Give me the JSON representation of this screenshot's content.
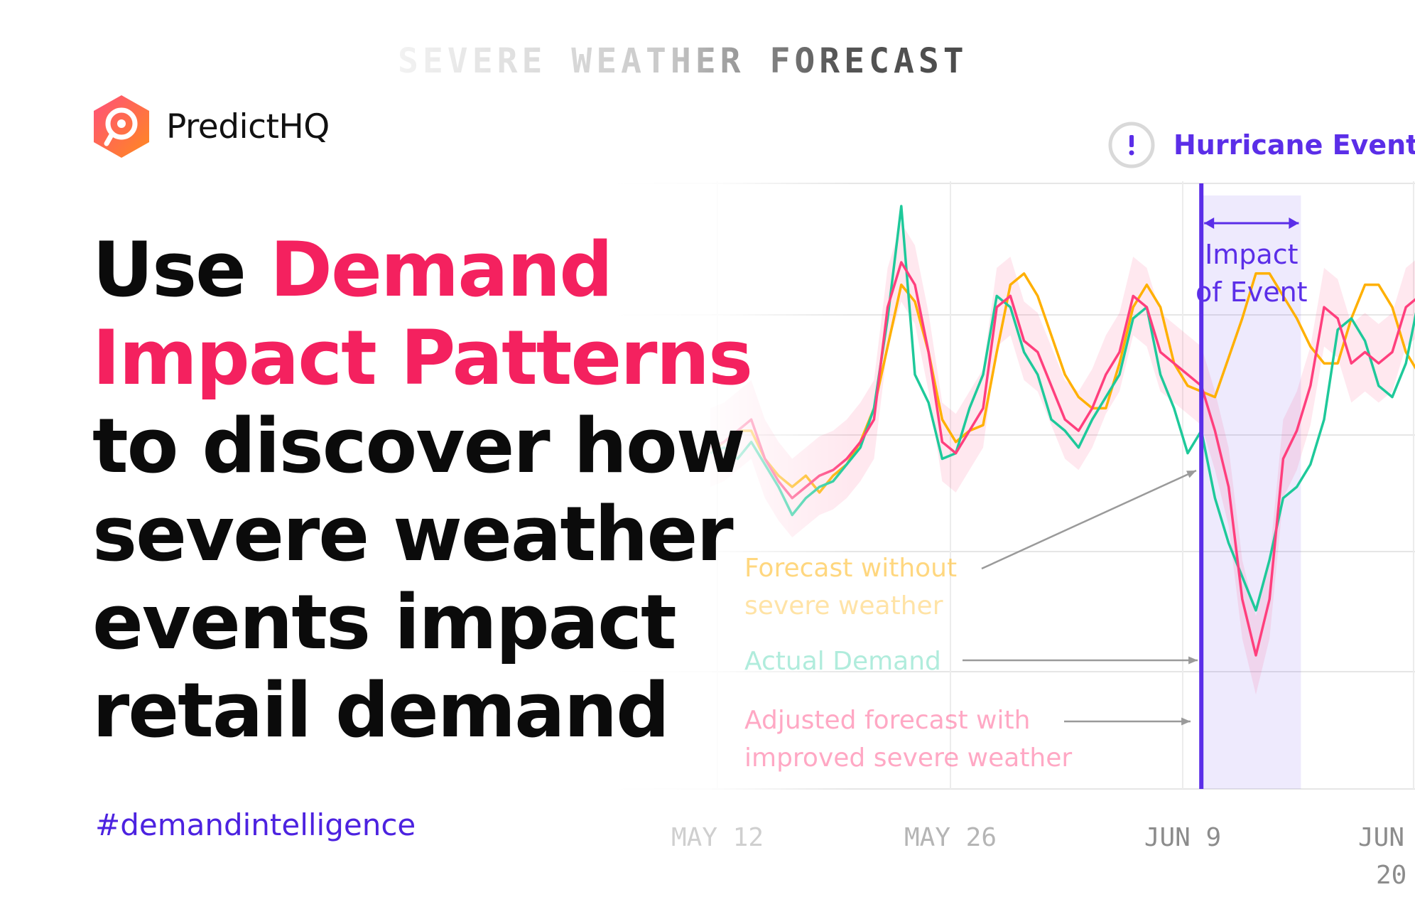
{
  "brand": {
    "name": "PredictHQ"
  },
  "headline": {
    "line1_prefix": "Use",
    "accent_line1": "Demand",
    "accent_line2": "Impact Patterns",
    "rest": [
      "to discover how",
      "severe weather",
      "events impact",
      "retail demand"
    ]
  },
  "hashtag": "#demandintelligence",
  "colors": {
    "accent": "#f4215f",
    "brand_purple": "#4c22e0",
    "forecast_without": "#ffb000",
    "actual_demand": "#1ec99a",
    "adjusted_forecast": "#ff3f7d",
    "event_line": "#5b2ee8"
  },
  "chart_data": {
    "type": "line",
    "title": "SEVERE WEATHER FORECAST",
    "x_tick_labels": [
      "MAY 12",
      "MAY 26",
      "JUN 9",
      "JUN"
    ],
    "x_partial_label": "20",
    "grid": true,
    "x": [
      0,
      1,
      2,
      3,
      4,
      5,
      6,
      7,
      8,
      9,
      10,
      11,
      12,
      13,
      14,
      15,
      16,
      17,
      18,
      19,
      20,
      21,
      22,
      23,
      24,
      25,
      26,
      27,
      28,
      29,
      30,
      31,
      32,
      33,
      34,
      35,
      36,
      37,
      38,
      39,
      40,
      41,
      42,
      43,
      44,
      45,
      46,
      47,
      48,
      49,
      50,
      51,
      52,
      53,
      54,
      55
    ],
    "ylim": [
      0,
      100
    ],
    "series": [
      {
        "name": "Forecast without severe weather",
        "values": [
          56,
          58,
          60,
          60,
          55,
          52,
          50,
          52,
          49,
          52,
          54,
          58,
          64,
          75,
          86,
          83,
          74,
          62,
          58,
          60,
          61,
          74,
          86,
          88,
          84,
          77,
          70,
          66,
          64,
          64,
          72,
          82,
          86,
          82,
          72,
          68,
          67,
          66,
          73,
          80,
          88,
          88,
          84,
          80,
          75,
          72,
          72,
          80,
          86,
          86,
          82,
          74,
          70,
          72,
          76,
          78
        ]
      },
      {
        "name": "Actual Demand",
        "values": [
          56,
          57,
          55,
          58,
          54,
          50,
          45,
          48,
          50,
          51,
          54,
          57,
          64,
          80,
          100,
          70,
          65,
          55,
          56,
          64,
          70,
          84,
          82,
          74,
          70,
          62,
          60,
          57,
          62,
          66,
          70,
          80,
          82,
          70,
          64,
          56,
          60,
          48,
          40,
          34,
          28,
          37,
          48,
          50,
          54,
          62,
          78,
          80,
          76,
          68,
          66,
          72,
          84,
          86,
          80,
          76
        ]
      },
      {
        "name": "Adjusted forecast with improved severe weather",
        "values": [
          57,
          58,
          60,
          62,
          55,
          51,
          48,
          50,
          52,
          53,
          55,
          58,
          62,
          82,
          90,
          86,
          74,
          58,
          56,
          60,
          64,
          82,
          84,
          76,
          74,
          68,
          62,
          60,
          64,
          70,
          74,
          84,
          82,
          74,
          72,
          70,
          68,
          60,
          50,
          30,
          20,
          30,
          55,
          60,
          68,
          82,
          80,
          72,
          74,
          72,
          74,
          82,
          84,
          82,
          76,
          74
        ]
      }
    ],
    "confidence_band_series": "Adjusted forecast with improved severe weather",
    "annotations": [
      {
        "label": "Hurricane Event",
        "icon": "exclamation-icon",
        "at_index": 36
      },
      {
        "label": "Impact of Event",
        "line1": "Impact",
        "line2": "of Event",
        "span_index": [
          36,
          42
        ]
      }
    ],
    "legend": [
      {
        "series": "Forecast without severe weather",
        "line1": "Forecast without",
        "line2": "severe weather"
      },
      {
        "series": "Actual Demand",
        "line1": "Actual Demand",
        "line2": ""
      },
      {
        "series": "Adjusted forecast with improved severe weather",
        "line1": "Adjusted forecast with",
        "line2": "improved severe weather"
      }
    ],
    "legend_placement": "bottom-left of chart, with arrows pointing to lines"
  }
}
